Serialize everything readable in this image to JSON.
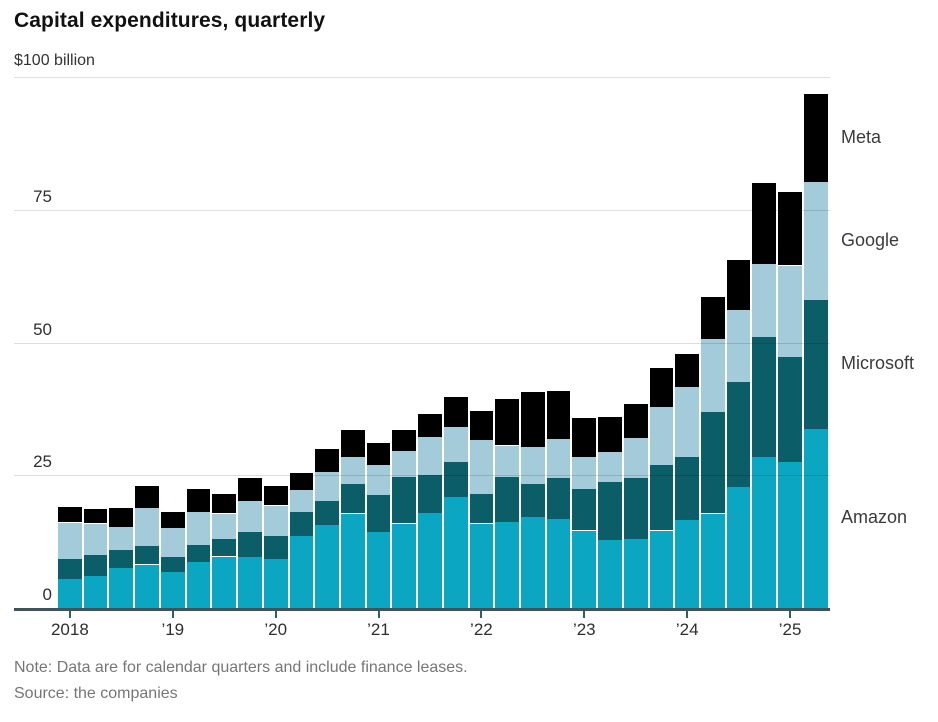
{
  "title": "Capital expenditures, quarterly",
  "y_axis": {
    "unit_label": "$100 billion",
    "tick_labels": [
      "75",
      "50",
      "25",
      "0"
    ],
    "tick_values": [
      75,
      50,
      25,
      0
    ],
    "gridline_values": [
      100,
      75,
      50,
      25
    ]
  },
  "x_axis": {
    "tick_labels": [
      "2018",
      "’19",
      "’20",
      "’21",
      "’22",
      "’23",
      "’24",
      "’25"
    ],
    "tick_category_indices": [
      0,
      4,
      8,
      12,
      16,
      20,
      24,
      28
    ]
  },
  "legend": {
    "items": [
      "Meta",
      "Google",
      "Microsoft",
      "Amazon"
    ]
  },
  "footer": {
    "note": "Note: Data are for calendar quarters and include finance leases.",
    "source": "Source: the companies"
  },
  "colors": {
    "amazon": "#0aa6c2",
    "microsoft": "#0b5d68",
    "google": "#a4cbd9",
    "meta": "#000000",
    "gridline_over": "rgba(0,0,0,0.13)",
    "axis_line": "#3f545a",
    "tick": "#2e5f66",
    "title_text": "#111111",
    "label_text": "#2f2f2f",
    "legend_text": "#3b3b3b",
    "note_text": "#767676",
    "background": "#ffffff"
  },
  "chart_data": {
    "type": "bar",
    "stacked": true,
    "title": "Capital expenditures, quarterly",
    "unit": "billions of U.S. dollars",
    "ylim": [
      0,
      100
    ],
    "y_ticks": [
      0,
      25,
      50,
      75,
      100
    ],
    "grid": "horizontal",
    "legend_position": "right",
    "categories": [
      "2018 Q1",
      "2018 Q2",
      "2018 Q3",
      "2018 Q4",
      "2019 Q1",
      "2019 Q2",
      "2019 Q3",
      "2019 Q4",
      "2020 Q1",
      "2020 Q2",
      "2020 Q3",
      "2020 Q4",
      "2021 Q1",
      "2021 Q2",
      "2021 Q3",
      "2021 Q4",
      "2022 Q1",
      "2022 Q2",
      "2022 Q3",
      "2022 Q4",
      "2023 Q1",
      "2023 Q2",
      "2023 Q3",
      "2023 Q4",
      "2024 Q1",
      "2024 Q2",
      "2024 Q3",
      "2024 Q4",
      "2025 Q1",
      "2025 Q2"
    ],
    "series": [
      {
        "name": "Amazon",
        "color": "#0aa6c2",
        "values": [
          5.5,
          6.0,
          7.6,
          8.2,
          6.7,
          8.7,
          9.7,
          9.6,
          9.2,
          13.6,
          15.6,
          17.8,
          14.3,
          15.9,
          17.9,
          20.9,
          15.9,
          16.2,
          17.1,
          16.8,
          14.6,
          12.8,
          13.0,
          14.6,
          16.5,
          17.8,
          22.8,
          28.5,
          27.5,
          33.8
        ]
      },
      {
        "name": "Microsoft",
        "color": "#0b5d68",
        "values": [
          3.7,
          3.9,
          3.3,
          3.5,
          2.9,
          3.2,
          3.4,
          4.7,
          4.4,
          4.4,
          4.5,
          5.6,
          7.0,
          8.8,
          7.1,
          6.6,
          5.6,
          8.5,
          6.3,
          7.6,
          7.9,
          10.9,
          11.5,
          12.3,
          12.0,
          19.1,
          19.8,
          22.6,
          19.8,
          24.2
        ]
      },
      {
        "name": "Google",
        "color": "#a4cbd9",
        "values": [
          6.9,
          6.0,
          4.4,
          7.1,
          5.4,
          6.1,
          4.7,
          5.9,
          5.7,
          4.2,
          5.5,
          5.1,
          5.7,
          4.9,
          7.2,
          6.6,
          10.1,
          5.9,
          6.9,
          7.4,
          6.0,
          5.7,
          7.5,
          11.0,
          13.1,
          13.8,
          13.5,
          13.7,
          17.2,
          22.2
        ]
      },
      {
        "name": "Meta",
        "color": "#000000",
        "values": [
          2.9,
          2.7,
          3.5,
          4.2,
          3.0,
          4.5,
          3.7,
          4.3,
          3.7,
          3.3,
          4.3,
          5.1,
          4.0,
          4.0,
          4.4,
          5.7,
          5.6,
          8.7,
          10.4,
          9.0,
          7.3,
          6.6,
          6.5,
          7.3,
          6.3,
          7.9,
          9.4,
          15.2,
          13.9,
          16.7
        ]
      }
    ]
  }
}
